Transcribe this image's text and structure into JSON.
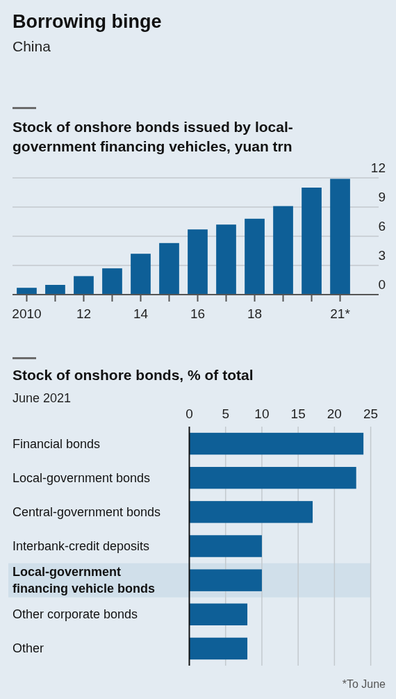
{
  "chart_data": [
    {
      "type": "bar",
      "title": "Borrowing binge",
      "subtitle": "China",
      "ylabel": "Stock of onshore bonds issued by local-government financing vehicles, yuan trn",
      "categories": [
        "2010",
        null,
        "12",
        null,
        "14",
        null,
        "16",
        null,
        "18",
        null,
        null,
        "21*"
      ],
      "values": [
        0.7,
        1.0,
        1.9,
        2.7,
        4.2,
        5.3,
        6.7,
        7.2,
        7.8,
        9.1,
        11.0,
        11.9
      ],
      "color": "#0e5f97",
      "ylim": [
        0,
        12
      ],
      "yticks": [
        0,
        3,
        6,
        9,
        12
      ],
      "grid": "y",
      "annotations": [
        "*To June"
      ]
    },
    {
      "type": "bar",
      "orientation": "horizontal",
      "title": "Stock of onshore bonds, % of total",
      "subtitle": "June 2021",
      "categories": [
        "Financial bonds",
        "Local-government bonds",
        "Central-government bonds",
        "Interbank-credit deposits",
        "Local-government financing vehicle bonds",
        "Other corporate bonds",
        "Other"
      ],
      "values": [
        24,
        23,
        17,
        10,
        10,
        8,
        8
      ],
      "color": "#0e5f97",
      "xlim": [
        0,
        25
      ],
      "xticks": [
        0,
        5,
        10,
        15,
        20,
        25
      ],
      "grid": "x",
      "bands": [
        {
          "axis": "y",
          "from": "Local-government financing vehicle bonds",
          "to": "Local-government financing vehicle bonds",
          "color": "#d0dfea"
        }
      ]
    }
  ]
}
